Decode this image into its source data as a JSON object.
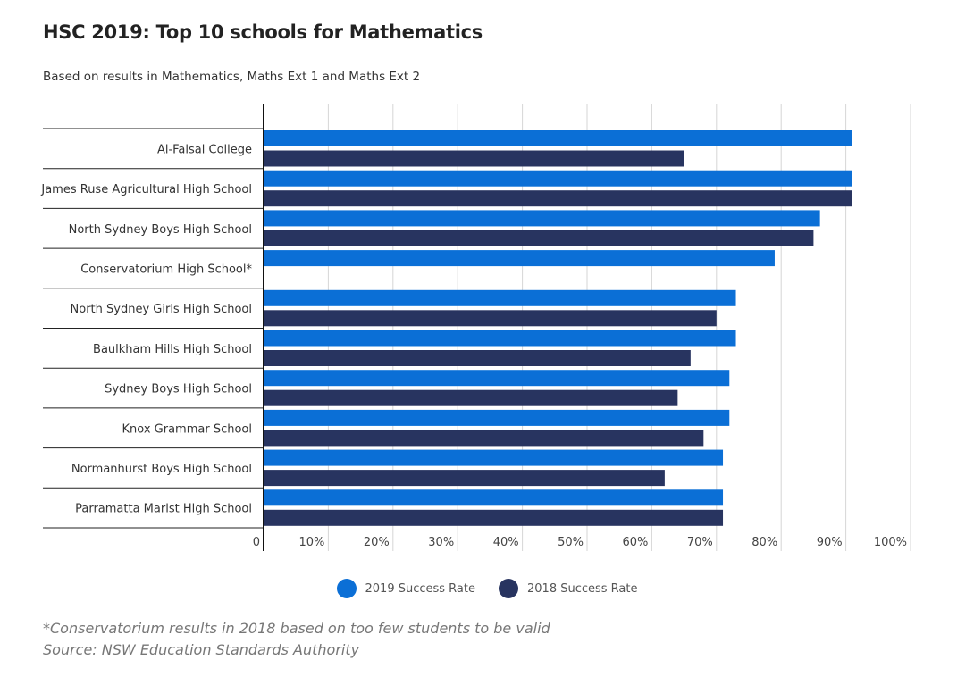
{
  "chart_data": {
    "type": "bar",
    "orientation": "horizontal",
    "title": "HSC 2019: Top 10 schools for Mathematics",
    "subtitle": "Based on results in Mathematics, Maths Ext 1 and Maths Ext 2",
    "categories": [
      "Al-Faisal College",
      "James Ruse Agricultural High School",
      "North Sydney Boys High School",
      "Conservatorium High School*",
      "North Sydney Girls High School",
      "Baulkham Hills High School",
      "Sydney Boys High School",
      "Knox Grammar School",
      "Normanhurst Boys High School",
      "Parramatta Marist High School"
    ],
    "series": [
      {
        "name": "2019 Success Rate",
        "color": "#0b6fd6",
        "values": [
          91,
          91,
          86,
          79,
          73,
          73,
          72,
          72,
          71,
          71
        ]
      },
      {
        "name": "2018 Success Rate",
        "color": "#283460",
        "values": [
          65,
          91,
          85,
          null,
          70,
          66,
          64,
          68,
          62,
          71
        ]
      }
    ],
    "xlim": [
      0,
      100
    ],
    "xticks": [
      0,
      10,
      20,
      30,
      40,
      50,
      60,
      70,
      80,
      90,
      100
    ],
    "xtick_labels": [
      "0",
      "10%",
      "20%",
      "30%",
      "40%",
      "50%",
      "60%",
      "70%",
      "80%",
      "90%",
      "100%"
    ],
    "grid": true,
    "legend_position": "bottom"
  },
  "footnotes": {
    "note": "*Conservatorium results in 2018 based on too few students to be valid",
    "source": "Source: NSW Education Standards Authority"
  }
}
